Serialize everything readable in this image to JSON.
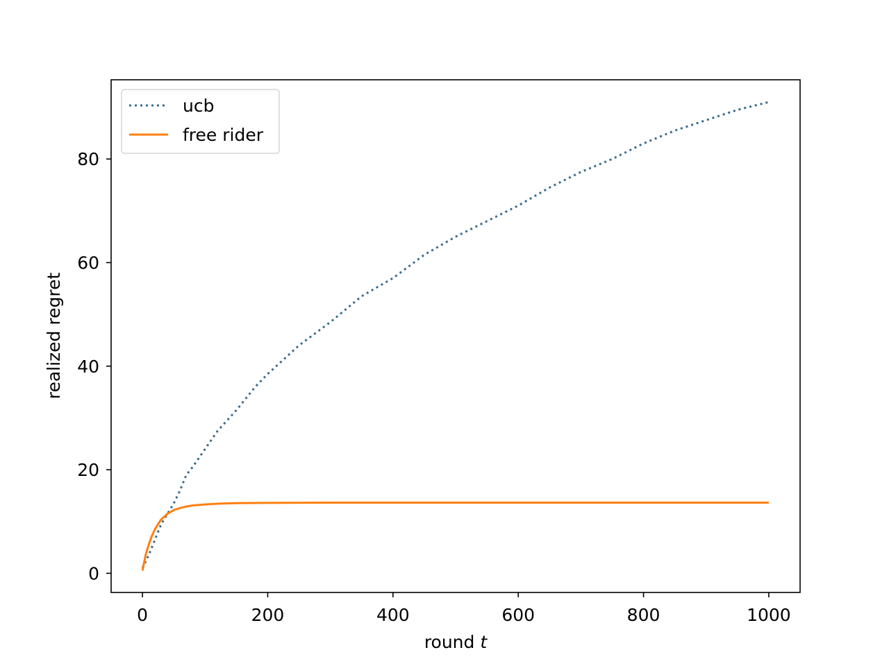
{
  "chart_data": {
    "type": "line",
    "title": "",
    "xlabel": "round",
    "xlabel_var": "t",
    "ylabel": "realized regret",
    "xlim": [
      -50,
      1050
    ],
    "ylim": [
      -3.7,
      95.3
    ],
    "xticks": [
      0,
      200,
      400,
      600,
      800,
      1000
    ],
    "yticks": [
      0,
      20,
      40,
      60,
      80
    ],
    "grid": false,
    "legend_position": "top-left",
    "series": [
      {
        "name": "ucb",
        "style": "dotted",
        "color": "#3a6b8c",
        "x": [
          0,
          10,
          20,
          30,
          40,
          50,
          60,
          70,
          80,
          100,
          120,
          150,
          180,
          200,
          250,
          300,
          350,
          400,
          450,
          500,
          550,
          600,
          650,
          700,
          750,
          800,
          850,
          900,
          950,
          1000
        ],
        "y": [
          1.0,
          3.5,
          6.5,
          9.5,
          11.5,
          13.5,
          16.0,
          19.0,
          20.5,
          24.0,
          27.5,
          31.5,
          36.0,
          38.5,
          44.0,
          48.5,
          53.5,
          57.0,
          61.5,
          65.0,
          68.0,
          71.0,
          74.5,
          77.5,
          80.0,
          83.0,
          85.5,
          87.5,
          89.5,
          91.0
        ]
      },
      {
        "name": "free rider",
        "style": "solid",
        "color": "#ff7f0e",
        "x": [
          0,
          5,
          10,
          15,
          20,
          25,
          30,
          40,
          50,
          60,
          70,
          80,
          100,
          120,
          150,
          200,
          300,
          400,
          500,
          600,
          700,
          800,
          900,
          1000
        ],
        "y": [
          0.5,
          3.5,
          5.5,
          7.2,
          8.5,
          9.5,
          10.4,
          11.5,
          12.2,
          12.6,
          12.9,
          13.1,
          13.3,
          13.45,
          13.55,
          13.6,
          13.65,
          13.65,
          13.65,
          13.65,
          13.65,
          13.65,
          13.65,
          13.65
        ]
      }
    ]
  }
}
